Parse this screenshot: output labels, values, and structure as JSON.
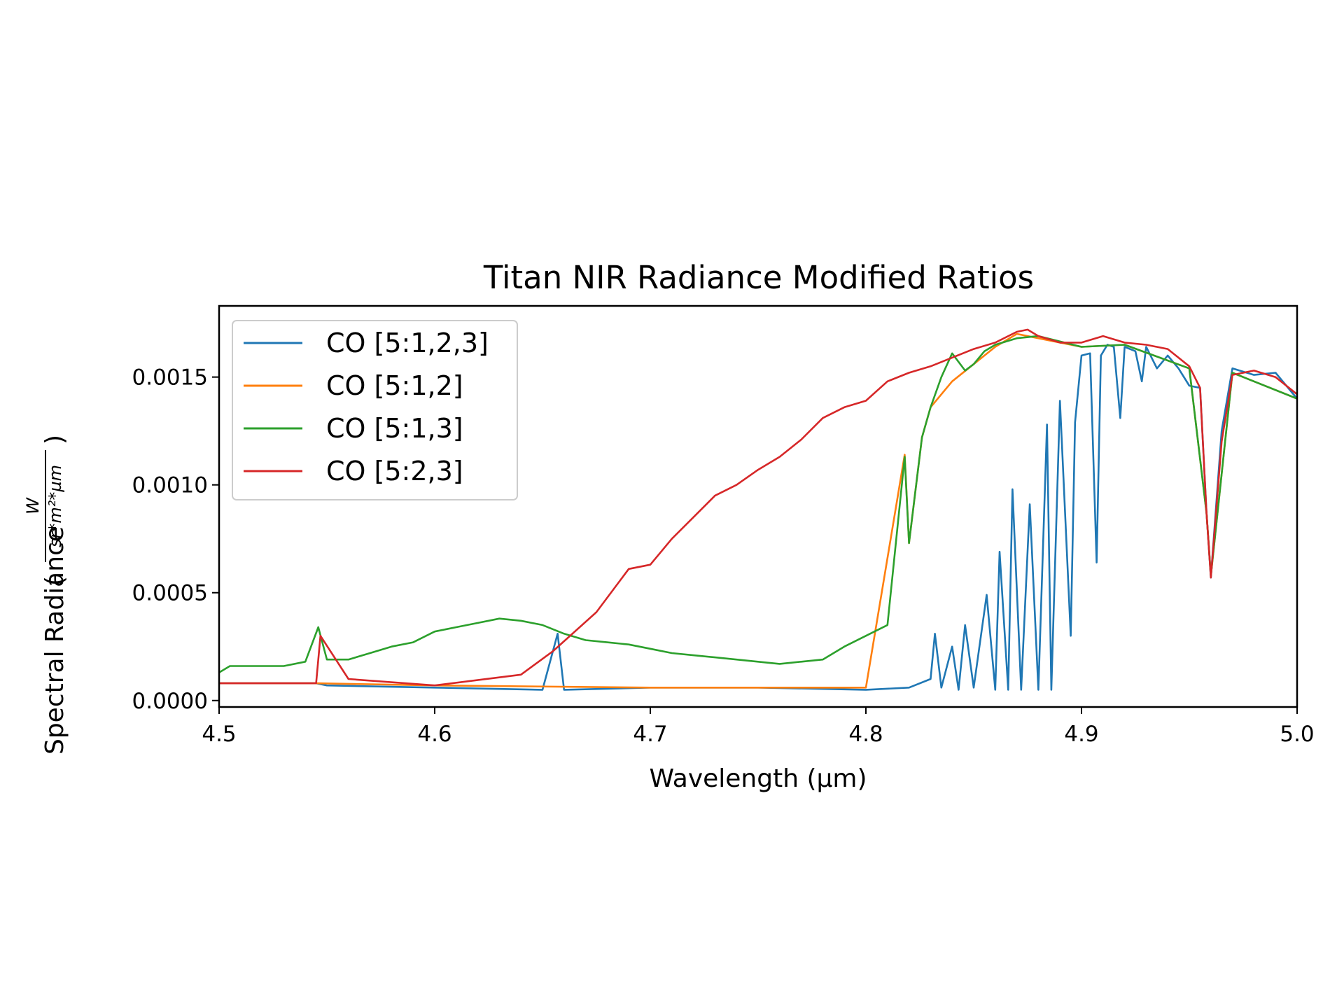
{
  "chart_data": {
    "type": "line",
    "title": "Titan NIR Radiance Modified Ratios",
    "xlabel": "Wavelength (µm)",
    "ylabel": {
      "prefix": "Spectral Radiance",
      "unit_numerator": "W",
      "unit_denominator": "sr*m²*µm"
    },
    "xlim": [
      4.5,
      5.0
    ],
    "ylim": [
      -3e-05,
      0.00183
    ],
    "xticks": [
      {
        "value": 4.5,
        "label": "4.5"
      },
      {
        "value": 4.6,
        "label": "4.6"
      },
      {
        "value": 4.7,
        "label": "4.7"
      },
      {
        "value": 4.8,
        "label": "4.8"
      },
      {
        "value": 4.9,
        "label": "4.9"
      },
      {
        "value": 5.0,
        "label": "5.0"
      }
    ],
    "yticks": [
      {
        "value": 0.0,
        "label": "0.0000"
      },
      {
        "value": 0.0005,
        "label": "0.0005"
      },
      {
        "value": 0.001,
        "label": "0.0010"
      },
      {
        "value": 0.0015,
        "label": "0.0015"
      }
    ],
    "grid": false,
    "legend_position": "upper-left",
    "series": [
      {
        "name": "CO [5:1,2,3]",
        "color": "#1f77b4",
        "x": [
          4.5,
          4.545,
          4.55,
          4.6,
          4.65,
          4.657,
          4.66,
          4.7,
          4.75,
          4.8,
          4.82,
          4.83,
          4.832,
          4.835,
          4.84,
          4.843,
          4.846,
          4.85,
          4.856,
          4.86,
          4.862,
          4.866,
          4.868,
          4.872,
          4.876,
          4.88,
          4.884,
          4.886,
          4.89,
          4.895,
          4.897,
          4.9,
          4.904,
          4.907,
          4.909,
          4.912,
          4.915,
          4.918,
          4.92,
          4.925,
          4.928,
          4.93,
          4.935,
          4.94,
          4.945,
          4.95,
          4.955,
          4.958,
          4.96,
          4.965,
          4.97,
          4.98,
          4.99,
          5.0
        ],
        "y": [
          8e-05,
          8e-05,
          7e-05,
          6e-05,
          5e-05,
          0.00031,
          5e-05,
          6e-05,
          6e-05,
          5e-05,
          6e-05,
          0.0001,
          0.00031,
          6e-05,
          0.00025,
          5e-05,
          0.00035,
          6e-05,
          0.00049,
          5e-05,
          0.00069,
          5e-05,
          0.00098,
          5e-05,
          0.00091,
          5e-05,
          0.00128,
          5e-05,
          0.00139,
          0.0003,
          0.00129,
          0.0016,
          0.00161,
          0.00064,
          0.0016,
          0.00165,
          0.00164,
          0.00131,
          0.00164,
          0.00162,
          0.00148,
          0.00164,
          0.00154,
          0.0016,
          0.00154,
          0.00146,
          0.00145,
          0.00087,
          0.00057,
          0.00125,
          0.00154,
          0.00151,
          0.00152,
          0.0014
        ]
      },
      {
        "name": "CO [5:1,2]",
        "color": "#ff7f0e",
        "x": [
          4.5,
          4.545,
          4.6,
          4.7,
          4.8,
          4.818,
          4.82,
          4.826,
          4.83,
          4.84,
          4.85,
          4.86,
          4.87,
          4.88,
          4.9,
          4.92,
          4.95,
          4.958,
          4.96,
          4.97,
          5.0
        ],
        "y": [
          8e-05,
          8e-05,
          7e-05,
          6e-05,
          6e-05,
          0.00114,
          0.00073,
          0.00122,
          0.00136,
          0.00148,
          0.00156,
          0.00164,
          0.0017,
          0.00168,
          0.00164,
          0.00165,
          0.00154,
          0.00087,
          0.00058,
          0.00152,
          0.0014
        ]
      },
      {
        "name": "CO [5:1,3]",
        "color": "#2ca02c",
        "x": [
          4.5,
          4.505,
          4.51,
          4.52,
          4.53,
          4.54,
          4.546,
          4.55,
          4.56,
          4.57,
          4.58,
          4.59,
          4.6,
          4.61,
          4.62,
          4.63,
          4.64,
          4.65,
          4.66,
          4.67,
          4.68,
          4.69,
          4.7,
          4.71,
          4.72,
          4.73,
          4.74,
          4.75,
          4.76,
          4.77,
          4.78,
          4.79,
          4.8,
          4.81,
          4.818,
          4.82,
          4.826,
          4.83,
          4.835,
          4.84,
          4.846,
          4.85,
          4.855,
          4.86,
          4.87,
          4.88,
          4.9,
          4.92,
          4.95,
          4.958,
          4.96,
          4.97,
          5.0
        ],
        "y": [
          0.00013,
          0.00016,
          0.00016,
          0.00016,
          0.00016,
          0.00018,
          0.00034,
          0.00019,
          0.00019,
          0.00022,
          0.00025,
          0.00027,
          0.00032,
          0.00034,
          0.00036,
          0.00038,
          0.00037,
          0.00035,
          0.00031,
          0.00028,
          0.00027,
          0.00026,
          0.00024,
          0.00022,
          0.00021,
          0.0002,
          0.00019,
          0.00018,
          0.00017,
          0.00018,
          0.00019,
          0.00025,
          0.0003,
          0.00035,
          0.00113,
          0.00073,
          0.00122,
          0.00136,
          0.0015,
          0.00161,
          0.00153,
          0.00156,
          0.00162,
          0.00165,
          0.00168,
          0.00169,
          0.00164,
          0.00165,
          0.00154,
          0.00087,
          0.00058,
          0.00152,
          0.0014
        ]
      },
      {
        "name": "CO [5:2,3]",
        "color": "#d62728",
        "x": [
          4.5,
          4.545,
          4.547,
          4.56,
          4.6,
          4.64,
          4.655,
          4.675,
          4.69,
          4.7,
          4.71,
          4.72,
          4.73,
          4.74,
          4.75,
          4.76,
          4.77,
          4.78,
          4.79,
          4.8,
          4.81,
          4.82,
          4.83,
          4.84,
          4.85,
          4.86,
          4.87,
          4.875,
          4.88,
          4.89,
          4.9,
          4.91,
          4.92,
          4.93,
          4.94,
          4.95,
          4.955,
          4.958,
          4.96,
          4.965,
          4.97,
          4.98,
          4.99,
          5.0
        ],
        "y": [
          8e-05,
          8e-05,
          0.0003,
          0.0001,
          7e-05,
          0.00012,
          0.00023,
          0.00041,
          0.00061,
          0.00063,
          0.00075,
          0.00085,
          0.00095,
          0.001,
          0.00107,
          0.00113,
          0.00121,
          0.00131,
          0.00136,
          0.00139,
          0.00148,
          0.00152,
          0.00155,
          0.00159,
          0.00163,
          0.00166,
          0.00171,
          0.00172,
          0.00169,
          0.00166,
          0.00166,
          0.00169,
          0.00166,
          0.00165,
          0.00163,
          0.00155,
          0.00145,
          0.00087,
          0.00057,
          0.0012,
          0.00151,
          0.00153,
          0.0015,
          0.00142
        ]
      }
    ]
  }
}
